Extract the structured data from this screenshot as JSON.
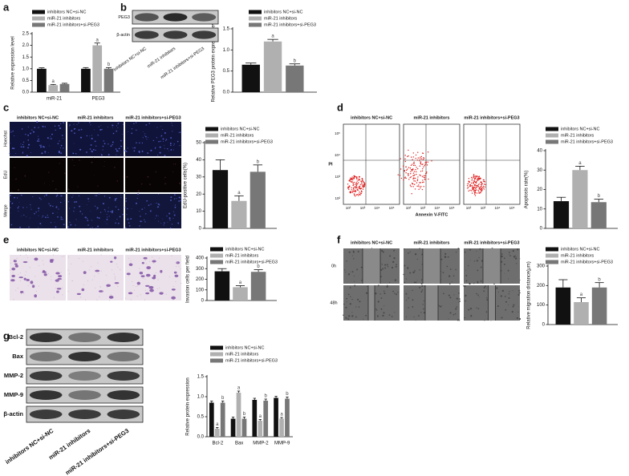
{
  "chart_data": [
    {
      "type": "bar",
      "ylabel": "Relative expression level",
      "categories": [
        "miR-21",
        "PEG3"
      ],
      "ylim": [
        0,
        2.5
      ],
      "yticks": [
        {
          "value": 0,
          "label": "0.0"
        },
        0.5,
        {
          "value": 1,
          "label": "1.0"
        },
        1.5,
        {
          "value": 2,
          "label": "2.0"
        },
        2.5
      ],
      "series": [
        {
          "name": "inhibitors NC+si-NC",
          "color": "#111111",
          "values": [
            1.0,
            1.0
          ],
          "errors": [
            0.04,
            0.05
          ],
          "annotations": [
            null,
            null
          ]
        },
        {
          "name": "miR-21 inhibitors",
          "color": "#b0b0b0",
          "values": [
            0.3,
            2.0
          ],
          "errors": [
            0.03,
            0.1
          ],
          "annotations": [
            "a",
            "a"
          ]
        },
        {
          "name": "miR-21 inhibitors+si-PEG3",
          "color": "#777777",
          "values": [
            0.35,
            1.0
          ],
          "errors": [
            0.03,
            0.05
          ],
          "annotations": [
            null,
            "b"
          ]
        }
      ]
    },
    {
      "type": "bar",
      "ylabel": "Relative PEG3 protein expression level",
      "categories": [
        null
      ],
      "ylim": [
        0,
        1.5
      ],
      "yticks": [
        {
          "value": 0,
          "label": "0.0"
        },
        0.5,
        {
          "value": 1,
          "label": "1.0"
        },
        1.5
      ],
      "series": [
        {
          "name": "inhibitors NC+si-NC",
          "color": "#111111",
          "values": [
            0.65
          ],
          "errors": [
            0.04
          ],
          "annotations": [
            null
          ]
        },
        {
          "name": "miR-21 inhibitors",
          "color": "#b0b0b0",
          "values": [
            1.2
          ],
          "errors": [
            0.05
          ],
          "annotations": [
            "a"
          ]
        },
        {
          "name": "miR-21 inhibitors+si-PEG3",
          "color": "#777777",
          "values": [
            0.63
          ],
          "errors": [
            0.04
          ],
          "annotations": [
            "b"
          ]
        }
      ]
    },
    {
      "type": "bar",
      "ylabel": "EdU-positive cells(%)",
      "categories": [
        null
      ],
      "ylim": [
        0,
        50
      ],
      "yticks": [
        0,
        10,
        20,
        30,
        40,
        50
      ],
      "series": [
        {
          "name": "inhibitors NC+si-NC",
          "color": "#111111",
          "values": [
            34
          ],
          "errors": [
            6
          ],
          "annotations": [
            null
          ]
        },
        {
          "name": "miR-21 inhibitors",
          "color": "#b0b0b0",
          "values": [
            16
          ],
          "errors": [
            3
          ],
          "annotations": [
            "a"
          ]
        },
        {
          "name": "miR-21 inhibitors+si-PEG3",
          "color": "#777777",
          "values": [
            33
          ],
          "errors": [
            4
          ],
          "annotations": [
            "b"
          ]
        }
      ]
    },
    {
      "type": "bar",
      "ylabel": "Apoptosis rate(%)",
      "categories": [
        null
      ],
      "ylim": [
        0,
        40
      ],
      "yticks": [
        0,
        10,
        20,
        30,
        40
      ],
      "series": [
        {
          "name": "inhibitors NC+si-NC",
          "color": "#111111",
          "values": [
            14
          ],
          "errors": [
            2
          ],
          "annotations": [
            null
          ]
        },
        {
          "name": "miR-21 inhibitors",
          "color": "#b0b0b0",
          "values": [
            30
          ],
          "errors": [
            2
          ],
          "annotations": [
            "a"
          ]
        },
        {
          "name": "miR-21 inhibitors+si-PEG3",
          "color": "#777777",
          "values": [
            13.5
          ],
          "errors": [
            1.5
          ],
          "annotations": [
            "b"
          ]
        }
      ]
    },
    {
      "type": "bar",
      "ylabel": "Invasion cells per field",
      "categories": [
        null
      ],
      "ylim": [
        0,
        400
      ],
      "yticks": [
        0,
        100,
        200,
        300,
        400
      ],
      "series": [
        {
          "name": "inhibitors NC+si-NC",
          "color": "#111111",
          "values": [
            275
          ],
          "errors": [
            25
          ],
          "annotations": [
            null
          ]
        },
        {
          "name": "miR-21 inhibitors",
          "color": "#b0b0b0",
          "values": [
            125
          ],
          "errors": [
            15
          ],
          "annotations": [
            "a"
          ]
        },
        {
          "name": "miR-21 inhibitors+si-PEG3",
          "color": "#777777",
          "values": [
            270
          ],
          "errors": [
            20
          ],
          "annotations": [
            "b"
          ]
        }
      ]
    },
    {
      "type": "bar",
      "ylabel": "Relative migration distance(μm)",
      "categories": [
        null
      ],
      "ylim": [
        0,
        300
      ],
      "yticks": [
        0,
        100,
        200,
        300
      ],
      "series": [
        {
          "name": "inhibitors NC+si-NC",
          "color": "#111111",
          "values": [
            190
          ],
          "errors": [
            40
          ],
          "annotations": [
            null
          ]
        },
        {
          "name": "miR-21 inhibitors",
          "color": "#b0b0b0",
          "values": [
            115
          ],
          "errors": [
            22
          ],
          "annotations": [
            "a"
          ]
        },
        {
          "name": "miR-21 inhibitors+si-PEG3",
          "color": "#777777",
          "values": [
            190
          ],
          "errors": [
            25
          ],
          "annotations": [
            "b"
          ]
        }
      ]
    },
    {
      "type": "bar",
      "ylabel": "Relative protein expression",
      "categories": [
        "Bcl-2",
        "Bax",
        "MMP-2",
        "MMP-9"
      ],
      "ylim": [
        0,
        1.5
      ],
      "yticks": [
        {
          "value": 0,
          "label": "0.0"
        },
        0.5,
        {
          "value": 1,
          "label": "1.0"
        },
        1.5
      ],
      "series": [
        {
          "name": "inhibitors NC+si-NC",
          "color": "#111111",
          "values": [
            0.85,
            0.45,
            0.92,
            0.97
          ],
          "errors": [
            0.04,
            0.04,
            0.04,
            0.04
          ],
          "annotations": [
            null,
            null,
            null,
            null
          ]
        },
        {
          "name": "miR-21 inhibitors",
          "color": "#b0b0b0",
          "values": [
            0.2,
            1.1,
            0.4,
            0.45
          ],
          "errors": [
            0.03,
            0.04,
            0.03,
            0.03
          ],
          "annotations": [
            "a",
            "a",
            "a",
            "a"
          ]
        },
        {
          "name": "miR-21 inhibitors+si-PEG3",
          "color": "#777777",
          "values": [
            0.85,
            0.45,
            0.9,
            0.95
          ],
          "errors": [
            0.04,
            0.04,
            0.04,
            0.04
          ],
          "annotations": [
            "b",
            "b",
            "b",
            "b"
          ]
        }
      ]
    }
  ],
  "figure": {
    "panel_labels": [
      "a",
      "b",
      "c",
      "d",
      "e",
      "f",
      "g"
    ],
    "b_blot": {
      "rows": [
        "PEG3",
        "β-actin"
      ],
      "lanes": [
        "inhibitors NC+si-NC",
        "miR-21 inhibitors",
        "miR-21 inhibitors+si-PEG3"
      ]
    },
    "c_images": {
      "columns": [
        "inhibitors NC+si-NC",
        "miR-21 inhibitors",
        "miR-21 inhibitors+si-PEG3"
      ],
      "rows": [
        "Hoechst",
        "EdU",
        "Merge"
      ]
    },
    "d_flow": {
      "columns": [
        "inhibitors NC+si-NC",
        "miR-21 inhibitors",
        "miR-21 inhibitors+si-PEG3"
      ],
      "y_label": "PI",
      "x_label": "Annexin V-FITC",
      "ticks": [
        "10²",
        "10³",
        "10⁴",
        "10⁵"
      ]
    },
    "e_images": {
      "columns": [
        "inhibitors NC+si-NC",
        "miR-21 inhibitors",
        "miR-21 inhibitors+si-PEG3"
      ]
    },
    "f_images": {
      "columns": [
        "inhibitors NC+si-NC",
        "miR-21 inhibitors",
        "miR-21 inhibitors+si-PEG3"
      ],
      "rows": [
        "0h",
        "48h"
      ]
    },
    "g_blot": {
      "rows": [
        "Bcl-2",
        "Bax",
        "MMP-2",
        "MMP-9",
        "β-actin"
      ],
      "lanes": [
        "inhibitors NC+si-NC",
        "miR-21 inhibitors",
        "miR-21 inhibitors+si-PEG3"
      ]
    }
  }
}
